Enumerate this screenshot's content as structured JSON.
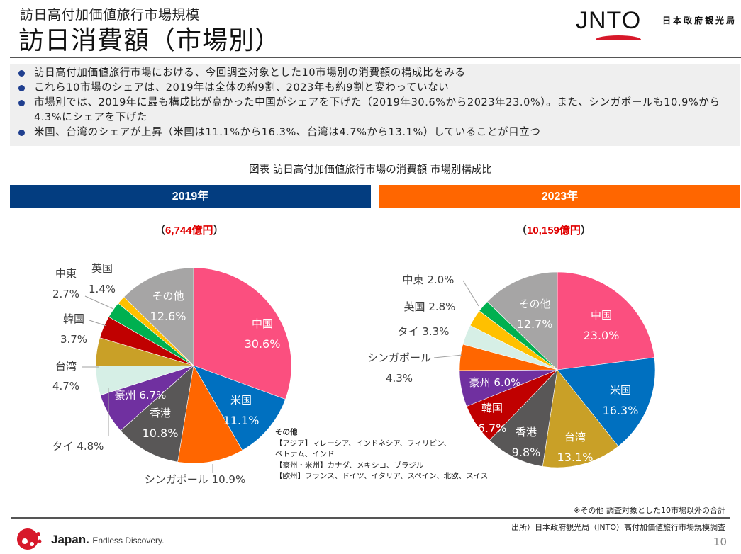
{
  "header": {
    "subtitle": "訪日高付加価値旅行市場規模",
    "title": "訪日消費額（市場別）",
    "logo_text": "JNTO",
    "org_name": "日本政府観光局"
  },
  "bullets": [
    "訪日高付加価値旅行市場における、今回調査対象とした10市場別の消費額の構成比をみる",
    "これら10市場のシェアは、2019年は全体の約9割、2023年も約9割と変わっていない",
    "市場別では、2019年に最も構成比が高かった中国がシェアを下げた（2019年30.6%から2023年23.0%）。また、シンガポールも10.9%から4.3%にシェアを下げた",
    "米国、台湾のシェアが上昇（米国は11.1%から16.3%、台湾は4.7%から13.1%）していることが目立つ"
  ],
  "figure_title": "図表  訪日高付加価値旅行市場の消費額  市場別構成比",
  "colors": {
    "中国": "#fb4f7f",
    "米国": "#0070c0",
    "シンガポール": "#ff6600",
    "香港": "#595757",
    "豪州": "#7030a0",
    "タイ": "#d6efe6",
    "台湾": "#c9a027",
    "韓国": "#c00000",
    "中東": "#00b050",
    "英国": "#ffc000",
    "その他": "#a6a5a5",
    "year2019": "#033d80",
    "year2023": "#ff6600",
    "total_amount": "#e00000"
  },
  "chart_data": [
    {
      "type": "pie",
      "title": "2019年",
      "total_label_open": "（",
      "total_amount": "6,744億円",
      "total_label_close": "）",
      "unit": "%",
      "slices": [
        {
          "name": "中国",
          "value": 30.6
        },
        {
          "name": "米国",
          "value": 11.1
        },
        {
          "name": "シンガポール",
          "value": 10.9
        },
        {
          "name": "香港",
          "value": 10.8
        },
        {
          "name": "豪州",
          "value": 6.7
        },
        {
          "name": "タイ",
          "value": 4.8
        },
        {
          "name": "台湾",
          "value": 4.7
        },
        {
          "name": "韓国",
          "value": 3.7
        },
        {
          "name": "中東",
          "value": 2.7
        },
        {
          "name": "英国",
          "value": 1.4
        },
        {
          "name": "その他",
          "value": 12.6
        }
      ]
    },
    {
      "type": "pie",
      "title": "2023年",
      "total_label_open": "（",
      "total_amount": "10,159億円",
      "total_label_close": "）",
      "unit": "%",
      "slices": [
        {
          "name": "中国",
          "value": 23.0
        },
        {
          "name": "米国",
          "value": 16.3
        },
        {
          "name": "台湾",
          "value": 13.1
        },
        {
          "name": "香港",
          "value": 9.8
        },
        {
          "name": "韓国",
          "value": 6.7
        },
        {
          "name": "豪州",
          "value": 6.0
        },
        {
          "name": "シンガポール",
          "value": 4.3
        },
        {
          "name": "タイ",
          "value": 3.3
        },
        {
          "name": "英国",
          "value": 2.8
        },
        {
          "name": "中東",
          "value": 2.0
        },
        {
          "name": "その他",
          "value": 12.7
        }
      ]
    }
  ],
  "other_note": {
    "heading": "その他",
    "lines": [
      "【アジア】マレーシア、インドネシア、フィリピン、",
      "ベトナム、インド",
      "【豪州・米州】カナダ、メキシコ、ブラジル",
      "【欧州】フランス、ドイツ、イタリア、スペイン、北欧、スイス"
    ]
  },
  "footer": {
    "footnote": "※その他  調査対象とした10市場以外の合計",
    "source": "出所）日本政府観光局（JNTO）高付加価値旅行市場規模調査",
    "page_number": "10",
    "brand_bold": "Japan.",
    "brand_tagline": "Endless Discovery."
  }
}
